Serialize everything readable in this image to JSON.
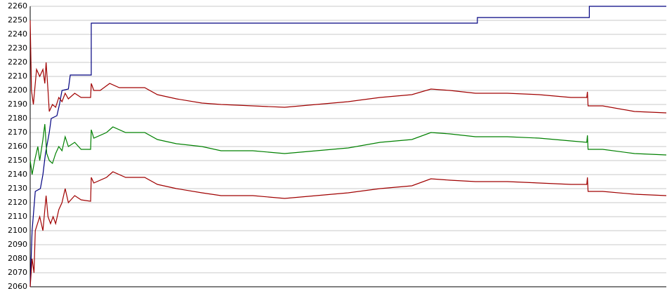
{
  "chart_data": {
    "type": "line",
    "xlim": [
      0,
      100
    ],
    "ylim": [
      2060,
      2260
    ],
    "yticks": [
      2060,
      2070,
      2080,
      2090,
      2100,
      2110,
      2120,
      2130,
      2140,
      2150,
      2160,
      2170,
      2180,
      2190,
      2200,
      2210,
      2220,
      2230,
      2240,
      2250,
      2260
    ],
    "grid": true,
    "series": [
      {
        "color": "#000080",
        "x": [
          0,
          0.3,
          0.8,
          1.6,
          2,
          2.4,
          3,
          3.3,
          4.2,
          4.6,
          5,
          6,
          6.3,
          9.6,
          9.6,
          70.3,
          70.3,
          87.9,
          87.9,
          100
        ],
        "values": [
          2060,
          2100,
          2128,
          2130,
          2140,
          2155,
          2170,
          2180,
          2182,
          2190,
          2200,
          2201,
          2211,
          2211,
          2248,
          2248,
          2252,
          2252,
          2260,
          2260
        ]
      },
      {
        "color": "#a00000",
        "x": [
          0,
          0.2,
          0.5,
          1,
          1.5,
          2,
          2.3,
          2.5,
          2.8,
          3,
          3.5,
          4,
          4.5,
          5,
          5.5,
          6,
          7,
          8,
          9.5,
          9.6,
          10,
          11,
          12.5,
          14,
          16,
          18,
          20,
          23,
          27,
          30,
          35,
          40,
          45,
          50,
          55,
          60,
          63,
          66,
          70,
          75,
          80,
          85,
          87.5,
          87.6,
          87.7,
          90,
          95,
          100
        ],
        "values": [
          2250,
          2200,
          2190,
          2215,
          2210,
          2215,
          2205,
          2220,
          2200,
          2185,
          2190,
          2188,
          2195,
          2192,
          2198,
          2194,
          2198,
          2195,
          2195,
          2205,
          2200,
          2200,
          2205,
          2202,
          2202,
          2202,
          2197,
          2194,
          2191,
          2190,
          2189,
          2188,
          2190,
          2192,
          2195,
          2197,
          2201,
          2200,
          2198,
          2198,
          2197,
          2195,
          2195,
          2199,
          2189,
          2189,
          2185,
          2184
        ]
      },
      {
        "color": "#008000",
        "x": [
          0,
          0.3,
          0.7,
          1.2,
          1.5,
          2,
          2.3,
          2.6,
          3,
          3.5,
          4,
          4.5,
          5,
          5.5,
          6,
          7,
          8,
          9.5,
          9.6,
          10,
          12,
          13,
          15,
          18,
          20,
          23,
          27,
          30,
          35,
          40,
          45,
          50,
          55,
          60,
          63,
          66,
          70,
          75,
          80,
          85,
          87.5,
          87.6,
          87.7,
          90,
          95,
          100
        ],
        "values": [
          2150,
          2140,
          2150,
          2160,
          2150,
          2165,
          2176,
          2155,
          2150,
          2148,
          2155,
          2160,
          2157,
          2167,
          2160,
          2163,
          2158,
          2158,
          2172,
          2166,
          2170,
          2174,
          2170,
          2170,
          2165,
          2162,
          2160,
          2157,
          2157,
          2155,
          2157,
          2159,
          2163,
          2165,
          2170,
          2169,
          2167,
          2167,
          2166,
          2164,
          2163,
          2168,
          2158,
          2158,
          2155,
          2154
        ]
      },
      {
        "color": "#a00000",
        "x": [
          0,
          0.3,
          0.6,
          0.8,
          1.5,
          2,
          2.5,
          2.8,
          3.2,
          3.6,
          4,
          4.5,
          5,
          5.5,
          6,
          7,
          8,
          9.5,
          9.6,
          10,
          12,
          13,
          15,
          18,
          20,
          23,
          27,
          30,
          35,
          40,
          45,
          50,
          55,
          60,
          63,
          66,
          70,
          75,
          80,
          85,
          87.5,
          87.6,
          87.7,
          90,
          95,
          100
        ],
        "values": [
          2060,
          2080,
          2070,
          2100,
          2110,
          2100,
          2125,
          2110,
          2105,
          2110,
          2105,
          2115,
          2120,
          2130,
          2120,
          2125,
          2122,
          2121,
          2138,
          2134,
          2138,
          2142,
          2138,
          2138,
          2133,
          2130,
          2127,
          2125,
          2125,
          2123,
          2125,
          2127,
          2130,
          2132,
          2137,
          2136,
          2135,
          2135,
          2134,
          2133,
          2133,
          2138,
          2128,
          2128,
          2126,
          2125
        ]
      }
    ]
  }
}
